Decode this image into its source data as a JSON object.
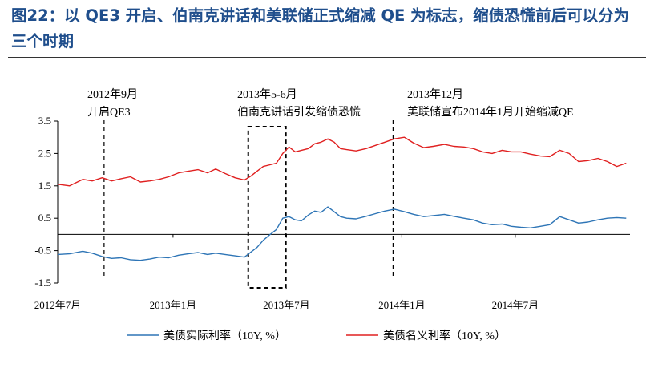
{
  "figure": {
    "title": "图22：以 QE3 开启、伯南克讲话和美联储正式缩减 QE 为标志，缩债恐慌前后可以分为三个时期"
  },
  "chart_data": {
    "type": "line",
    "title": "",
    "xlabel": "",
    "ylabel": "",
    "ylim": [
      -1.5,
      3.5
    ],
    "yticks": [
      "3.5",
      "2.5",
      "1.5",
      "0.5",
      "-0.5",
      "-1.5"
    ],
    "ytick_values": [
      3.5,
      2.5,
      1.5,
      0.5,
      -0.5,
      -1.5
    ],
    "xticks": [
      "2012年7月",
      "2013年1月",
      "2013年7月",
      "2014年1月",
      "2014年7月"
    ],
    "xtick_dates": [
      "2012-07-01",
      "2013-01-01",
      "2013-07-01",
      "2014-01-01",
      "2014-07-01"
    ],
    "xlim": [
      "2012-07-01",
      "2014-12-31"
    ],
    "grid": false,
    "legend": "bottom",
    "series": [
      {
        "name": "美债实际利率（10Y, %）",
        "color": "#2e75b6",
        "points": [
          [
            "2012-07-01",
            -0.62
          ],
          [
            "2012-07-20",
            -0.6
          ],
          [
            "2012-08-10",
            -0.52
          ],
          [
            "2012-08-25",
            -0.58
          ],
          [
            "2012-09-10",
            -0.68
          ],
          [
            "2012-09-25",
            -0.74
          ],
          [
            "2012-10-10",
            -0.72
          ],
          [
            "2012-10-25",
            -0.78
          ],
          [
            "2012-11-10",
            -0.8
          ],
          [
            "2012-11-25",
            -0.76
          ],
          [
            "2012-12-10",
            -0.7
          ],
          [
            "2012-12-25",
            -0.72
          ],
          [
            "2013-01-10",
            -0.64
          ],
          [
            "2013-01-25",
            -0.6
          ],
          [
            "2013-02-10",
            -0.56
          ],
          [
            "2013-02-25",
            -0.62
          ],
          [
            "2013-03-10",
            -0.58
          ],
          [
            "2013-03-25",
            -0.62
          ],
          [
            "2013-04-10",
            -0.66
          ],
          [
            "2013-04-25",
            -0.7
          ],
          [
            "2013-05-05",
            -0.55
          ],
          [
            "2013-05-15",
            -0.4
          ],
          [
            "2013-05-25",
            -0.18
          ],
          [
            "2013-06-05",
            0.0
          ],
          [
            "2013-06-15",
            0.15
          ],
          [
            "2013-06-25",
            0.5
          ],
          [
            "2013-07-05",
            0.55
          ],
          [
            "2013-07-15",
            0.45
          ],
          [
            "2013-07-25",
            0.42
          ],
          [
            "2013-08-05",
            0.6
          ],
          [
            "2013-08-15",
            0.72
          ],
          [
            "2013-08-25",
            0.68
          ],
          [
            "2013-09-05",
            0.85
          ],
          [
            "2013-09-15",
            0.7
          ],
          [
            "2013-09-25",
            0.55
          ],
          [
            "2013-10-05",
            0.5
          ],
          [
            "2013-10-20",
            0.48
          ],
          [
            "2013-11-05",
            0.56
          ],
          [
            "2013-11-20",
            0.64
          ],
          [
            "2013-12-05",
            0.72
          ],
          [
            "2013-12-20",
            0.78
          ],
          [
            "2014-01-05",
            0.7
          ],
          [
            "2014-01-20",
            0.62
          ],
          [
            "2014-02-05",
            0.55
          ],
          [
            "2014-02-20",
            0.58
          ],
          [
            "2014-03-10",
            0.62
          ],
          [
            "2014-03-25",
            0.56
          ],
          [
            "2014-04-10",
            0.5
          ],
          [
            "2014-04-25",
            0.45
          ],
          [
            "2014-05-10",
            0.35
          ],
          [
            "2014-05-25",
            0.3
          ],
          [
            "2014-06-10",
            0.32
          ],
          [
            "2014-06-25",
            0.25
          ],
          [
            "2014-07-10",
            0.22
          ],
          [
            "2014-07-25",
            0.2
          ],
          [
            "2014-08-10",
            0.25
          ],
          [
            "2014-08-25",
            0.3
          ],
          [
            "2014-09-10",
            0.55
          ],
          [
            "2014-09-25",
            0.45
          ],
          [
            "2014-10-10",
            0.35
          ],
          [
            "2014-10-25",
            0.38
          ],
          [
            "2014-11-10",
            0.45
          ],
          [
            "2014-11-25",
            0.5
          ],
          [
            "2014-12-10",
            0.52
          ],
          [
            "2014-12-25",
            0.5
          ]
        ]
      },
      {
        "name": "美债名义利率（10Y, %）",
        "color": "#e02020",
        "points": [
          [
            "2012-07-01",
            1.55
          ],
          [
            "2012-07-20",
            1.5
          ],
          [
            "2012-08-10",
            1.7
          ],
          [
            "2012-08-25",
            1.65
          ],
          [
            "2012-09-10",
            1.75
          ],
          [
            "2012-09-25",
            1.65
          ],
          [
            "2012-10-10",
            1.72
          ],
          [
            "2012-10-25",
            1.78
          ],
          [
            "2012-11-10",
            1.62
          ],
          [
            "2012-11-25",
            1.65
          ],
          [
            "2012-12-10",
            1.7
          ],
          [
            "2012-12-25",
            1.78
          ],
          [
            "2013-01-10",
            1.9
          ],
          [
            "2013-01-25",
            1.95
          ],
          [
            "2013-02-10",
            2.0
          ],
          [
            "2013-02-25",
            1.9
          ],
          [
            "2013-03-10",
            2.02
          ],
          [
            "2013-03-25",
            1.88
          ],
          [
            "2013-04-10",
            1.75
          ],
          [
            "2013-04-25",
            1.68
          ],
          [
            "2013-05-05",
            1.8
          ],
          [
            "2013-05-15",
            1.95
          ],
          [
            "2013-05-25",
            2.1
          ],
          [
            "2013-06-05",
            2.15
          ],
          [
            "2013-06-15",
            2.2
          ],
          [
            "2013-06-25",
            2.5
          ],
          [
            "2013-07-05",
            2.7
          ],
          [
            "2013-07-15",
            2.55
          ],
          [
            "2013-07-25",
            2.6
          ],
          [
            "2013-08-05",
            2.65
          ],
          [
            "2013-08-15",
            2.8
          ],
          [
            "2013-08-25",
            2.85
          ],
          [
            "2013-09-05",
            2.95
          ],
          [
            "2013-09-15",
            2.85
          ],
          [
            "2013-09-25",
            2.65
          ],
          [
            "2013-10-05",
            2.62
          ],
          [
            "2013-10-20",
            2.58
          ],
          [
            "2013-11-05",
            2.65
          ],
          [
            "2013-11-20",
            2.75
          ],
          [
            "2013-12-05",
            2.85
          ],
          [
            "2013-12-20",
            2.95
          ],
          [
            "2014-01-05",
            3.0
          ],
          [
            "2014-01-20",
            2.82
          ],
          [
            "2014-02-05",
            2.68
          ],
          [
            "2014-02-20",
            2.72
          ],
          [
            "2014-03-10",
            2.78
          ],
          [
            "2014-03-25",
            2.72
          ],
          [
            "2014-04-10",
            2.7
          ],
          [
            "2014-04-25",
            2.65
          ],
          [
            "2014-05-10",
            2.55
          ],
          [
            "2014-05-25",
            2.5
          ],
          [
            "2014-06-10",
            2.6
          ],
          [
            "2014-06-25",
            2.55
          ],
          [
            "2014-07-10",
            2.55
          ],
          [
            "2014-07-25",
            2.48
          ],
          [
            "2014-08-10",
            2.42
          ],
          [
            "2014-08-25",
            2.4
          ],
          [
            "2014-09-10",
            2.6
          ],
          [
            "2014-09-25",
            2.5
          ],
          [
            "2014-10-10",
            2.25
          ],
          [
            "2014-10-25",
            2.28
          ],
          [
            "2014-11-10",
            2.35
          ],
          [
            "2014-11-25",
            2.25
          ],
          [
            "2014-12-10",
            2.1
          ],
          [
            "2014-12-25",
            2.2
          ]
        ]
      }
    ],
    "annotations": [
      {
        "date": "2012-09-13",
        "lines": [
          "2012年9月",
          "开启QE3"
        ]
      },
      {
        "date": "2013-05-10",
        "lines": [
          "2013年5-6月",
          "伯南克讲话引发缩债恐慌"
        ]
      },
      {
        "date": "2013-12-18",
        "lines": [
          "2013年12月",
          "美联储宣布2014年1月开始缩减QE"
        ]
      }
    ],
    "highlight_box": {
      "from": "2013-05-01",
      "to": "2013-06-30",
      "ylim": [
        -1.5,
        3.5
      ]
    }
  }
}
